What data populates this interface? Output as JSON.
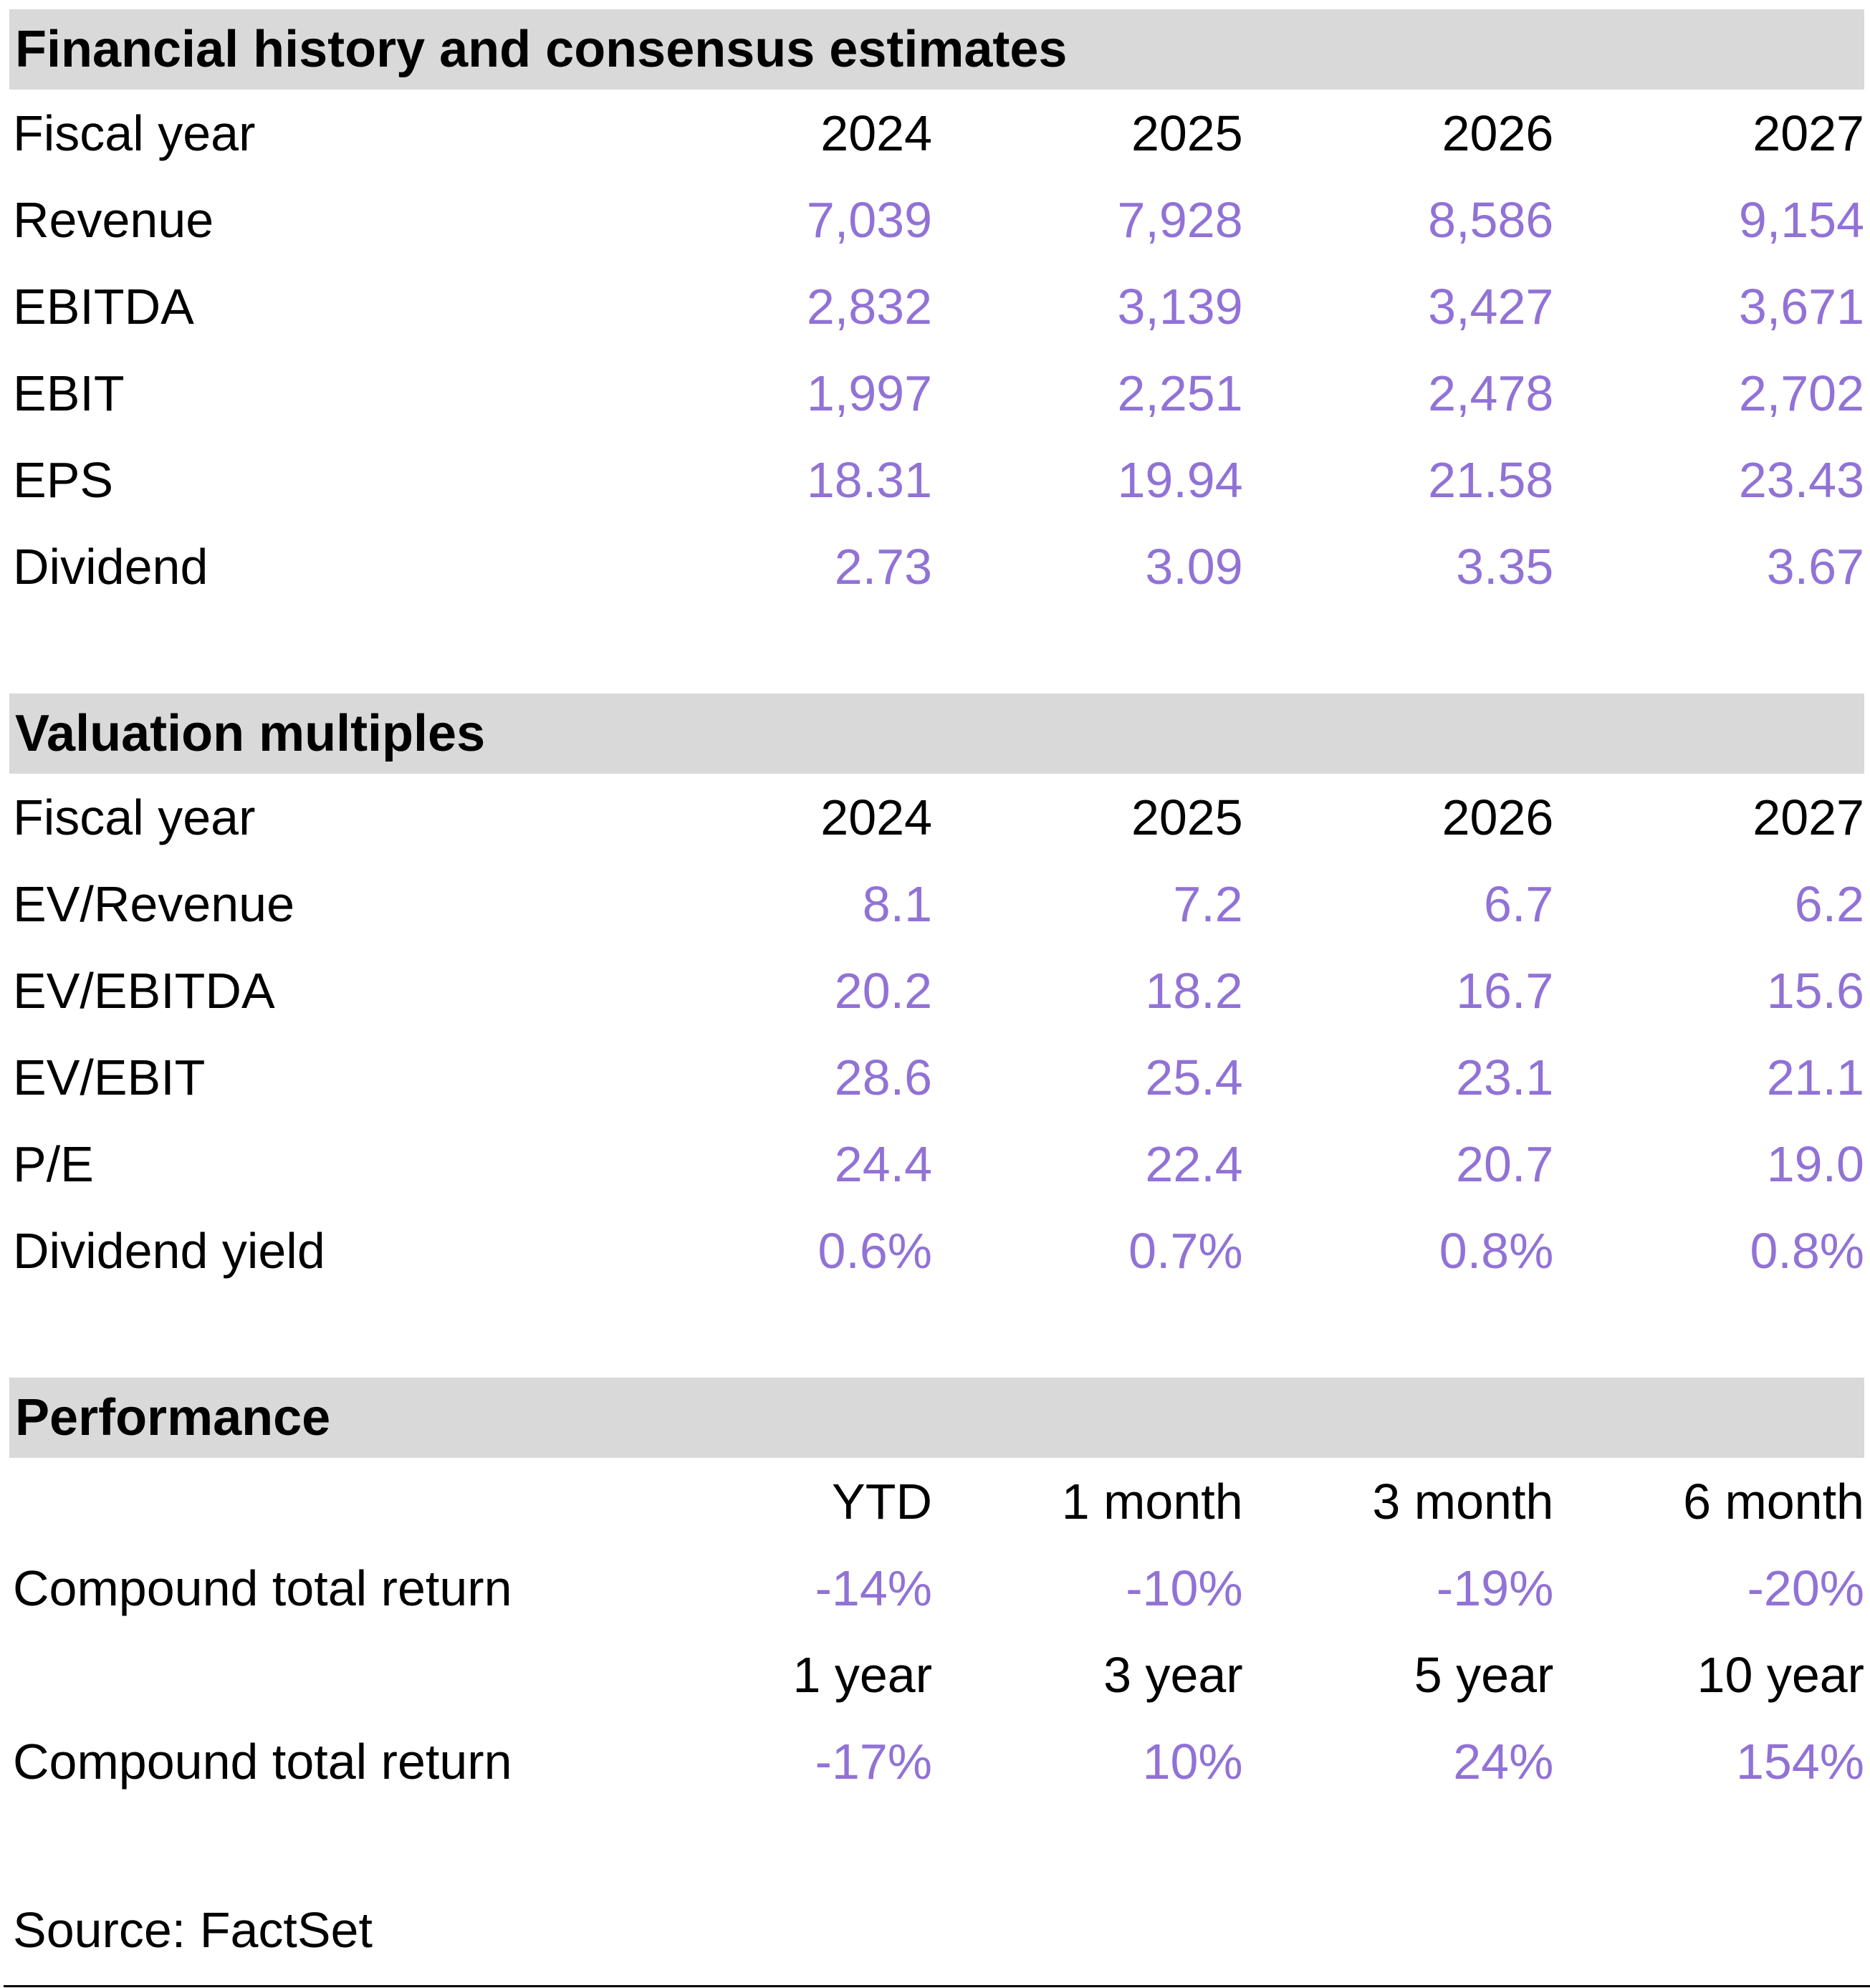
{
  "colors": {
    "accent_purple": "#9172D6",
    "band_gray": "#D9D9D9",
    "text_black": "#000000"
  },
  "sections": {
    "financial_history": {
      "title": "Financial history and consensus estimates",
      "row_header_label": "Fiscal year",
      "columns": [
        "2024",
        "2025",
        "2026",
        "2027"
      ],
      "rows": [
        {
          "label": "Revenue",
          "values": [
            "7,039",
            "7,928",
            "8,586",
            "9,154"
          ]
        },
        {
          "label": "EBITDA",
          "values": [
            "2,832",
            "3,139",
            "3,427",
            "3,671"
          ]
        },
        {
          "label": "EBIT",
          "values": [
            "1,997",
            "2,251",
            "2,478",
            "2,702"
          ]
        },
        {
          "label": "EPS",
          "values": [
            "18.31",
            "19.94",
            "21.58",
            "23.43"
          ]
        },
        {
          "label": "Dividend",
          "values": [
            "2.73",
            "3.09",
            "3.35",
            "3.67"
          ]
        }
      ]
    },
    "valuation_multiples": {
      "title": "Valuation multiples",
      "row_header_label": "Fiscal year",
      "columns": [
        "2024",
        "2025",
        "2026",
        "2027"
      ],
      "rows": [
        {
          "label": "EV/Revenue",
          "values": [
            "8.1",
            "7.2",
            "6.7",
            "6.2"
          ]
        },
        {
          "label": "EV/EBITDA",
          "values": [
            "20.2",
            "18.2",
            "16.7",
            "15.6"
          ]
        },
        {
          "label": "EV/EBIT",
          "values": [
            "28.6",
            "25.4",
            "23.1",
            "21.1"
          ]
        },
        {
          "label": "P/E",
          "values": [
            "24.4",
            "22.4",
            "20.7",
            "19.0"
          ]
        },
        {
          "label": "Dividend yield",
          "values": [
            "0.6%",
            "0.7%",
            "0.8%",
            "0.8%"
          ]
        }
      ]
    },
    "performance": {
      "title": "Performance",
      "blocks": [
        {
          "periods": [
            "YTD",
            "1 month",
            "3 month",
            "6 month"
          ],
          "label": "Compound total return",
          "values": [
            "-14%",
            "-10%",
            "-19%",
            "-20%"
          ]
        },
        {
          "periods": [
            "1 year",
            "3 year",
            "5 year",
            "10 year"
          ],
          "label": "Compound total return",
          "values": [
            "-17%",
            "10%",
            "24%",
            "154%"
          ]
        }
      ]
    }
  },
  "footer": {
    "source": "Source: FactSet"
  }
}
